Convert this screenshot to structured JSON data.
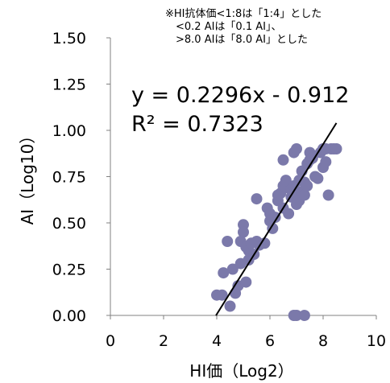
{
  "notes": [
    "※HI抗体価<1:8は「1:4」とした",
    "<0.2 AIは「0.1 AI」、",
    ">8.0 AIは「8.0 AI」とした"
  ],
  "chart_data": {
    "type": "scatter",
    "xlabel": "HI価（Log2）",
    "ylabel": "AI（Log10）",
    "xlim": [
      0,
      10
    ],
    "ylim": [
      0,
      1.5
    ],
    "x_ticks": [
      0,
      2,
      4,
      6,
      8,
      10
    ],
    "y_ticks": [
      0.0,
      0.25,
      0.5,
      0.75,
      1.0,
      1.25,
      1.5
    ],
    "x_tick_labels": [
      "0",
      "2",
      "4",
      "6",
      "8",
      "10"
    ],
    "y_tick_labels": [
      "0.00",
      "0.25",
      "0.50",
      "0.75",
      "1.00",
      "1.25",
      "1.50"
    ],
    "grid": false,
    "colors": {
      "points": "#7b79aa",
      "trendline": "#000000"
    },
    "trendline": {
      "slope": 0.2296,
      "intercept": -0.912,
      "x_range": [
        3.97,
        8.5
      ]
    },
    "equation": "y = 0.2296x - 0.912",
    "r_squared": "R² = 0.7323",
    "points": [
      [
        4.0,
        0.11
      ],
      [
        4.2,
        0.11
      ],
      [
        4.25,
        0.23
      ],
      [
        4.4,
        0.4
      ],
      [
        4.5,
        0.05
      ],
      [
        4.6,
        0.25
      ],
      [
        4.7,
        0.12
      ],
      [
        4.8,
        0.16
      ],
      [
        4.9,
        0.28
      ],
      [
        4.9,
        0.4
      ],
      [
        5.0,
        0.49
      ],
      [
        5.0,
        0.45
      ],
      [
        5.1,
        0.18
      ],
      [
        5.1,
        0.37
      ],
      [
        5.2,
        0.3
      ],
      [
        5.2,
        0.35
      ],
      [
        5.3,
        0.39
      ],
      [
        5.4,
        0.33
      ],
      [
        5.5,
        0.4
      ],
      [
        5.5,
        0.63
      ],
      [
        5.6,
        0.38
      ],
      [
        5.8,
        0.39
      ],
      [
        5.9,
        0.58
      ],
      [
        6.0,
        0.55
      ],
      [
        6.0,
        0.51
      ],
      [
        6.1,
        0.47
      ],
      [
        6.2,
        0.53
      ],
      [
        6.3,
        0.62
      ],
      [
        6.3,
        0.65
      ],
      [
        6.4,
        0.66
      ],
      [
        6.5,
        0.7
      ],
      [
        6.5,
        0.58
      ],
      [
        6.5,
        0.84
      ],
      [
        6.6,
        0.69
      ],
      [
        6.6,
        0.73
      ],
      [
        6.7,
        0.55
      ],
      [
        6.8,
        0.68
      ],
      [
        6.8,
        0.64
      ],
      [
        6.9,
        0.7
      ],
      [
        6.9,
        0.88
      ],
      [
        7.0,
        0.9
      ],
      [
        7.0,
        0.65
      ],
      [
        7.0,
        0.6
      ],
      [
        7.1,
        0.62
      ],
      [
        7.1,
        0.73
      ],
      [
        7.2,
        0.78
      ],
      [
        7.2,
        0.67
      ],
      [
        7.3,
        0.72
      ],
      [
        7.3,
        0.65
      ],
      [
        7.4,
        0.82
      ],
      [
        7.4,
        0.7
      ],
      [
        7.5,
        0.88
      ],
      [
        7.5,
        0.84
      ],
      [
        7.6,
        0.85
      ],
      [
        7.7,
        0.75
      ],
      [
        7.8,
        0.74
      ],
      [
        7.9,
        0.88
      ],
      [
        8.0,
        0.9
      ],
      [
        8.0,
        0.8
      ],
      [
        8.1,
        0.83
      ],
      [
        8.1,
        0.9
      ],
      [
        8.2,
        0.65
      ],
      [
        8.3,
        0.9
      ],
      [
        8.4,
        0.9
      ],
      [
        8.5,
        0.9
      ],
      [
        6.9,
        0.0
      ],
      [
        7.0,
        0.0
      ],
      [
        7.3,
        0.0
      ]
    ]
  }
}
